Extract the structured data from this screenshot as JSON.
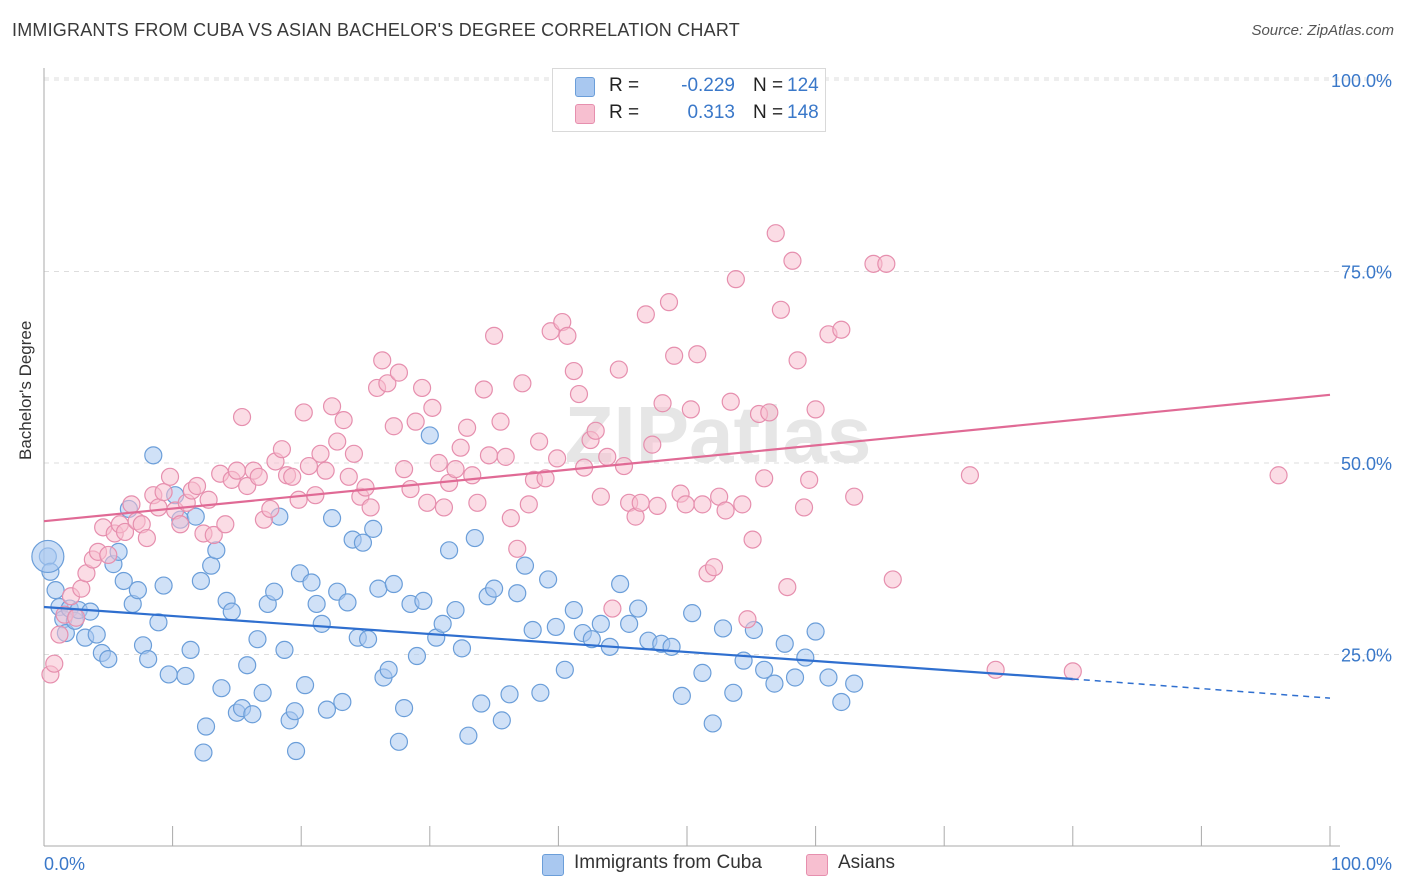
{
  "header": {
    "title": "IMMIGRANTS FROM CUBA VS ASIAN BACHELOR'S DEGREE CORRELATION CHART",
    "source": "Source: ZipAtlas.com"
  },
  "legend": {
    "rows": [
      {
        "r_label": "R =",
        "r_value": "-0.229",
        "n_label": "N =",
        "n_value": "124"
      },
      {
        "r_label": "R =",
        "r_value": "0.313",
        "n_label": "N =",
        "n_value": "148"
      }
    ]
  },
  "bottom_legend": [
    "Immigrants from Cuba",
    "Asians"
  ],
  "watermark": "ZIPatlas",
  "colors": {
    "cuba_fill": "#a9c8f0",
    "cuba_stroke": "#6b9ed9",
    "cuba_line": "#2f6fcf",
    "asian_fill": "#f7bfd0",
    "asian_stroke": "#e68fae",
    "asian_line": "#e06a95",
    "axis_text": "#3a78c9",
    "grid": "#dddddd"
  },
  "chart_data": {
    "type": "scatter",
    "title": "IMMIGRANTS FROM CUBA VS ASIAN BACHELOR'S DEGREE CORRELATION CHART",
    "xlabel": "",
    "ylabel": "Bachelor's Degree",
    "xlim": [
      0,
      100
    ],
    "ylim": [
      0,
      100
    ],
    "x_tick_labels": [
      "0.0%",
      "100.0%"
    ],
    "y_tick_labels": [
      "25.0%",
      "50.0%",
      "75.0%",
      "100.0%"
    ],
    "y_ticks": [
      25,
      50,
      75,
      100
    ],
    "grid": true,
    "legend_position": "top-center",
    "series": [
      {
        "name": "Immigrants from Cuba",
        "r": -0.229,
        "n": 124,
        "trend": {
          "x0": 0,
          "y0": 31.2,
          "x1": 80,
          "y1": 21.8,
          "dash_to_x": 100,
          "dash_to_y": 19.3
        },
        "points": [
          [
            0.3,
            37.8
          ],
          [
            0.5,
            35.8
          ],
          [
            0.9,
            33.4
          ],
          [
            1.2,
            31.2
          ],
          [
            1.5,
            29.6
          ],
          [
            1.7,
            27.8
          ],
          [
            2.0,
            31.0
          ],
          [
            2.4,
            29.4
          ],
          [
            2.7,
            30.8
          ],
          [
            3.2,
            27.2
          ],
          [
            3.6,
            30.6
          ],
          [
            4.1,
            27.6
          ],
          [
            4.5,
            25.2
          ],
          [
            5.0,
            24.4
          ],
          [
            5.4,
            36.8
          ],
          [
            5.8,
            38.4
          ],
          [
            6.2,
            34.6
          ],
          [
            6.6,
            44.0
          ],
          [
            6.9,
            31.6
          ],
          [
            7.3,
            33.4
          ],
          [
            7.7,
            26.2
          ],
          [
            8.1,
            24.4
          ],
          [
            8.5,
            51.0
          ],
          [
            8.9,
            29.2
          ],
          [
            9.3,
            34.0
          ],
          [
            9.7,
            22.4
          ],
          [
            10.2,
            45.8
          ],
          [
            10.6,
            42.6
          ],
          [
            11.0,
            22.2
          ],
          [
            11.4,
            25.6
          ],
          [
            11.8,
            43.0
          ],
          [
            12.2,
            34.6
          ],
          [
            12.6,
            15.6
          ],
          [
            13.0,
            36.6
          ],
          [
            13.4,
            38.6
          ],
          [
            13.8,
            20.6
          ],
          [
            14.2,
            32.0
          ],
          [
            14.6,
            30.6
          ],
          [
            15.0,
            17.4
          ],
          [
            15.4,
            18.0
          ],
          [
            15.8,
            23.6
          ],
          [
            16.2,
            17.2
          ],
          [
            16.6,
            27.0
          ],
          [
            17.0,
            20.0
          ],
          [
            17.4,
            31.6
          ],
          [
            17.9,
            33.2
          ],
          [
            18.3,
            43.0
          ],
          [
            18.7,
            25.6
          ],
          [
            19.1,
            16.4
          ],
          [
            19.5,
            17.6
          ],
          [
            19.9,
            35.6
          ],
          [
            20.3,
            21.0
          ],
          [
            20.8,
            34.4
          ],
          [
            21.2,
            31.6
          ],
          [
            21.6,
            29.0
          ],
          [
            22.0,
            17.8
          ],
          [
            22.4,
            42.8
          ],
          [
            22.8,
            33.2
          ],
          [
            23.2,
            18.8
          ],
          [
            23.6,
            31.8
          ],
          [
            24.0,
            40.0
          ],
          [
            24.4,
            27.2
          ],
          [
            24.8,
            39.6
          ],
          [
            25.2,
            27.0
          ],
          [
            25.6,
            41.4
          ],
          [
            26.0,
            33.6
          ],
          [
            26.4,
            22.0
          ],
          [
            26.8,
            23.0
          ],
          [
            27.2,
            34.2
          ],
          [
            27.6,
            13.6
          ],
          [
            28.0,
            18.0
          ],
          [
            28.5,
            31.6
          ],
          [
            29.0,
            24.8
          ],
          [
            29.5,
            32.0
          ],
          [
            30.0,
            53.6
          ],
          [
            30.5,
            27.2
          ],
          [
            31.0,
            29.0
          ],
          [
            31.5,
            38.6
          ],
          [
            32.0,
            30.8
          ],
          [
            32.5,
            25.8
          ],
          [
            33.0,
            14.4
          ],
          [
            33.5,
            40.2
          ],
          [
            34.0,
            18.6
          ],
          [
            34.5,
            32.6
          ],
          [
            35.0,
            33.6
          ],
          [
            35.6,
            16.4
          ],
          [
            36.2,
            19.8
          ],
          [
            36.8,
            33.0
          ],
          [
            37.4,
            36.6
          ],
          [
            38.0,
            28.2
          ],
          [
            38.6,
            20.0
          ],
          [
            39.2,
            34.8
          ],
          [
            39.8,
            28.6
          ],
          [
            40.5,
            23.0
          ],
          [
            41.2,
            30.8
          ],
          [
            41.9,
            27.8
          ],
          [
            42.6,
            27.0
          ],
          [
            43.3,
            29.0
          ],
          [
            44.0,
            26.0
          ],
          [
            44.8,
            34.2
          ],
          [
            45.5,
            29.0
          ],
          [
            46.2,
            31.0
          ],
          [
            47.0,
            26.8
          ],
          [
            48.0,
            26.4
          ],
          [
            48.8,
            26.0
          ],
          [
            49.6,
            19.6
          ],
          [
            50.4,
            30.4
          ],
          [
            51.2,
            22.6
          ],
          [
            52.0,
            16.0
          ],
          [
            52.8,
            28.4
          ],
          [
            53.6,
            20.0
          ],
          [
            54.4,
            24.2
          ],
          [
            55.2,
            28.2
          ],
          [
            56.0,
            23.0
          ],
          [
            56.8,
            21.2
          ],
          [
            57.6,
            26.4
          ],
          [
            58.4,
            22.0
          ],
          [
            59.2,
            24.6
          ],
          [
            60.0,
            28.0
          ],
          [
            61.0,
            22.0
          ],
          [
            62.0,
            18.8
          ],
          [
            63.0,
            21.2
          ],
          [
            12.4,
            12.2
          ],
          [
            19.6,
            12.4
          ]
        ]
      },
      {
        "name": "Asians",
        "r": 0.313,
        "n": 148,
        "trend": {
          "x0": 0,
          "y0": 42.4,
          "x1": 100,
          "y1": 58.9
        },
        "points": [
          [
            0.5,
            22.4
          ],
          [
            0.8,
            23.8
          ],
          [
            1.2,
            27.6
          ],
          [
            1.6,
            30.2
          ],
          [
            2.1,
            32.6
          ],
          [
            2.5,
            29.8
          ],
          [
            2.9,
            33.6
          ],
          [
            3.3,
            35.6
          ],
          [
            3.8,
            37.4
          ],
          [
            4.2,
            38.4
          ],
          [
            4.6,
            41.6
          ],
          [
            5.0,
            38.0
          ],
          [
            5.5,
            40.8
          ],
          [
            5.9,
            42.0
          ],
          [
            6.3,
            41.0
          ],
          [
            6.8,
            44.6
          ],
          [
            7.2,
            42.4
          ],
          [
            7.6,
            42.0
          ],
          [
            8.0,
            40.2
          ],
          [
            8.5,
            45.8
          ],
          [
            8.9,
            44.2
          ],
          [
            9.3,
            46.2
          ],
          [
            9.8,
            48.2
          ],
          [
            10.2,
            43.8
          ],
          [
            10.6,
            42.0
          ],
          [
            11.1,
            44.8
          ],
          [
            11.5,
            46.4
          ],
          [
            11.9,
            47.0
          ],
          [
            12.4,
            40.8
          ],
          [
            12.8,
            45.2
          ],
          [
            13.2,
            40.6
          ],
          [
            13.7,
            48.6
          ],
          [
            14.1,
            42.0
          ],
          [
            14.6,
            47.8
          ],
          [
            15.0,
            49.0
          ],
          [
            15.4,
            56.0
          ],
          [
            15.8,
            47.0
          ],
          [
            16.3,
            49.0
          ],
          [
            16.7,
            48.2
          ],
          [
            17.1,
            42.6
          ],
          [
            17.6,
            44.0
          ],
          [
            18.0,
            50.2
          ],
          [
            18.5,
            51.8
          ],
          [
            18.9,
            48.4
          ],
          [
            19.3,
            48.2
          ],
          [
            19.8,
            45.2
          ],
          [
            20.2,
            56.6
          ],
          [
            20.6,
            49.6
          ],
          [
            21.1,
            45.8
          ],
          [
            21.5,
            51.2
          ],
          [
            21.9,
            49.0
          ],
          [
            22.4,
            57.4
          ],
          [
            22.8,
            52.8
          ],
          [
            23.3,
            55.6
          ],
          [
            23.7,
            48.2
          ],
          [
            24.1,
            51.2
          ],
          [
            24.6,
            45.6
          ],
          [
            25.0,
            46.8
          ],
          [
            25.4,
            44.2
          ],
          [
            25.9,
            59.8
          ],
          [
            26.3,
            63.4
          ],
          [
            26.7,
            60.4
          ],
          [
            27.2,
            54.8
          ],
          [
            27.6,
            61.8
          ],
          [
            28.0,
            49.2
          ],
          [
            28.5,
            46.6
          ],
          [
            28.9,
            55.4
          ],
          [
            29.4,
            59.8
          ],
          [
            29.8,
            44.8
          ],
          [
            30.2,
            57.2
          ],
          [
            30.7,
            50.0
          ],
          [
            31.1,
            44.2
          ],
          [
            31.5,
            47.4
          ],
          [
            32.0,
            49.2
          ],
          [
            32.4,
            52.0
          ],
          [
            32.9,
            54.6
          ],
          [
            33.3,
            48.4
          ],
          [
            33.7,
            44.8
          ],
          [
            34.2,
            59.6
          ],
          [
            34.6,
            51.0
          ],
          [
            35.0,
            66.6
          ],
          [
            35.5,
            55.4
          ],
          [
            35.9,
            50.8
          ],
          [
            36.3,
            42.8
          ],
          [
            36.8,
            38.8
          ],
          [
            37.2,
            60.4
          ],
          [
            37.7,
            44.6
          ],
          [
            38.1,
            47.8
          ],
          [
            38.5,
            52.8
          ],
          [
            39.0,
            48.0
          ],
          [
            39.4,
            67.2
          ],
          [
            39.9,
            50.6
          ],
          [
            40.3,
            68.4
          ],
          [
            40.7,
            66.6
          ],
          [
            41.2,
            62.0
          ],
          [
            41.6,
            59.0
          ],
          [
            42.0,
            49.4
          ],
          [
            42.5,
            53.0
          ],
          [
            42.9,
            54.2
          ],
          [
            43.3,
            45.6
          ],
          [
            43.8,
            50.8
          ],
          [
            44.2,
            31.0
          ],
          [
            44.7,
            62.2
          ],
          [
            45.1,
            49.6
          ],
          [
            45.5,
            44.8
          ],
          [
            46.0,
            43.0
          ],
          [
            46.4,
            44.8
          ],
          [
            46.8,
            69.4
          ],
          [
            47.3,
            52.4
          ],
          [
            47.7,
            44.4
          ],
          [
            48.1,
            57.8
          ],
          [
            48.6,
            71.0
          ],
          [
            49.0,
            64.0
          ],
          [
            49.5,
            46.0
          ],
          [
            49.9,
            44.6
          ],
          [
            50.3,
            57.0
          ],
          [
            50.8,
            64.2
          ],
          [
            51.2,
            44.6
          ],
          [
            51.6,
            35.6
          ],
          [
            52.1,
            36.4
          ],
          [
            52.5,
            45.6
          ],
          [
            53.0,
            43.8
          ],
          [
            53.4,
            58.0
          ],
          [
            53.8,
            74.0
          ],
          [
            54.3,
            44.6
          ],
          [
            54.7,
            29.6
          ],
          [
            55.1,
            40.0
          ],
          [
            55.6,
            56.4
          ],
          [
            56.0,
            48.0
          ],
          [
            56.4,
            56.6
          ],
          [
            56.9,
            80.0
          ],
          [
            57.3,
            70.0
          ],
          [
            57.8,
            33.8
          ],
          [
            58.2,
            76.4
          ],
          [
            58.6,
            63.4
          ],
          [
            59.1,
            44.2
          ],
          [
            59.5,
            47.8
          ],
          [
            60.0,
            57.0
          ],
          [
            61.0,
            66.8
          ],
          [
            62.0,
            67.4
          ],
          [
            63.0,
            45.6
          ],
          [
            64.5,
            76.0
          ],
          [
            65.5,
            76.0
          ],
          [
            66.0,
            34.8
          ],
          [
            72.0,
            48.4
          ],
          [
            74.0,
            23.0
          ],
          [
            80.0,
            22.8
          ],
          [
            96.0,
            48.4
          ]
        ]
      }
    ]
  }
}
